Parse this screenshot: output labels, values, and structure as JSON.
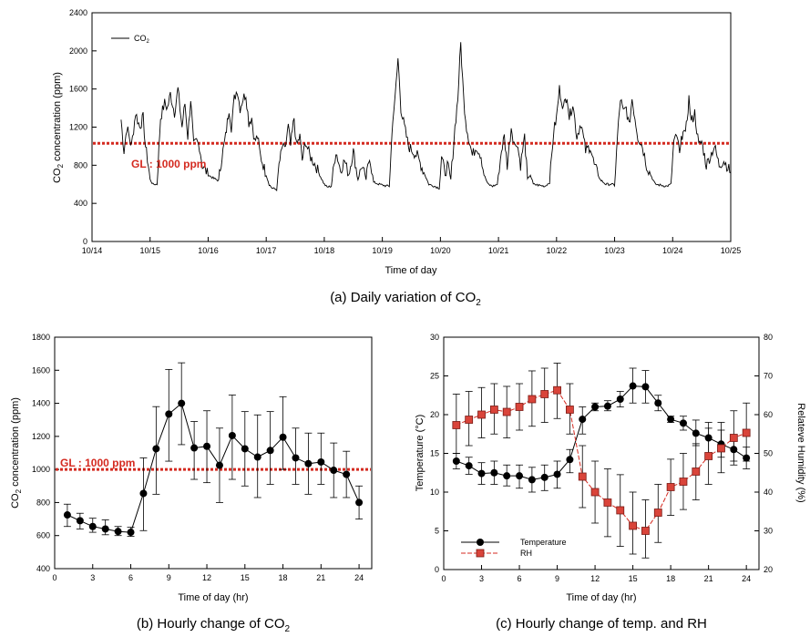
{
  "colors": {
    "guideline": "#d42a20",
    "rh_line": "#d42a20",
    "rh_marker": "#d9443a",
    "line": "#000000"
  },
  "chart_data": [
    {
      "type": "line",
      "id": "a",
      "caption": "(a) Daily variation of CO",
      "caption_sub": "2",
      "xlabel": "Time of day",
      "ylabel": "CO",
      "ylabel_sub": "2",
      "ylabel_rest": " concentration (ppm)",
      "xlim": [
        0,
        11
      ],
      "ylim": [
        0,
        2400
      ],
      "yticks": [
        0,
        400,
        800,
        1200,
        1600,
        2000,
        2400
      ],
      "xtick_labels": [
        "10/14",
        "10/15",
        "10/16",
        "10/17",
        "10/18",
        "10/19",
        "10/20",
        "10/21",
        "10/22",
        "10/23",
        "10/24",
        "10/25"
      ],
      "legend_label": "CO",
      "legend_sub": "2",
      "guideline": {
        "value": 1030,
        "label": "GL : 1000 ppm"
      },
      "series_anchors": [
        [
          0.5,
          1280
        ],
        [
          0.55,
          950
        ],
        [
          0.6,
          1200
        ],
        [
          0.68,
          1000
        ],
        [
          0.75,
          1350
        ],
        [
          0.82,
          1200
        ],
        [
          0.88,
          1300
        ],
        [
          0.92,
          1000
        ],
        [
          0.97,
          800
        ],
        [
          1.0,
          650
        ],
        [
          1.05,
          600
        ],
        [
          1.12,
          600
        ],
        [
          1.18,
          1300
        ],
        [
          1.25,
          1450
        ],
        [
          1.3,
          1400
        ],
        [
          1.35,
          1550
        ],
        [
          1.42,
          1350
        ],
        [
          1.48,
          1600
        ],
        [
          1.55,
          1200
        ],
        [
          1.6,
          1450
        ],
        [
          1.65,
          1100
        ],
        [
          1.7,
          1500
        ],
        [
          1.75,
          1000
        ],
        [
          1.8,
          1050
        ],
        [
          1.85,
          1000
        ],
        [
          1.9,
          800
        ],
        [
          1.95,
          750
        ],
        [
          2.0,
          700
        ],
        [
          2.1,
          660
        ],
        [
          2.18,
          640
        ],
        [
          2.24,
          900
        ],
        [
          2.3,
          1100
        ],
        [
          2.36,
          1400
        ],
        [
          2.4,
          1200
        ],
        [
          2.45,
          1500
        ],
        [
          2.5,
          1600
        ],
        [
          2.55,
          1400
        ],
        [
          2.6,
          1500
        ],
        [
          2.65,
          1550
        ],
        [
          2.7,
          1250
        ],
        [
          2.75,
          1300
        ],
        [
          2.8,
          1050
        ],
        [
          2.85,
          1100
        ],
        [
          2.9,
          900
        ],
        [
          2.95,
          800
        ],
        [
          3.0,
          700
        ],
        [
          3.05,
          600
        ],
        [
          3.1,
          560
        ],
        [
          3.18,
          545
        ],
        [
          3.22,
          800
        ],
        [
          3.28,
          1000
        ],
        [
          3.32,
          950
        ],
        [
          3.38,
          1200
        ],
        [
          3.42,
          1000
        ],
        [
          3.48,
          1300
        ],
        [
          3.52,
          1000
        ],
        [
          3.58,
          1100
        ],
        [
          3.62,
          850
        ],
        [
          3.68,
          1050
        ],
        [
          3.75,
          900
        ],
        [
          3.85,
          800
        ],
        [
          3.92,
          700
        ],
        [
          4.0,
          600
        ],
        [
          4.05,
          570
        ],
        [
          4.12,
          580
        ],
        [
          4.2,
          950
        ],
        [
          4.28,
          750
        ],
        [
          4.35,
          850
        ],
        [
          4.42,
          700
        ],
        [
          4.5,
          950
        ],
        [
          4.58,
          650
        ],
        [
          4.65,
          800
        ],
        [
          4.72,
          650
        ],
        [
          4.78,
          900
        ],
        [
          4.85,
          620
        ],
        [
          4.95,
          600
        ],
        [
          5.05,
          585
        ],
        [
          5.12,
          580
        ],
        [
          5.18,
          1300
        ],
        [
          5.22,
          1500
        ],
        [
          5.27,
          1920
        ],
        [
          5.32,
          1400
        ],
        [
          5.38,
          1200
        ],
        [
          5.45,
          1000
        ],
        [
          5.52,
          950
        ],
        [
          5.6,
          900
        ],
        [
          5.7,
          750
        ],
        [
          5.8,
          600
        ],
        [
          5.9,
          580
        ],
        [
          5.98,
          560
        ],
        [
          6.02,
          900
        ],
        [
          6.08,
          700
        ],
        [
          6.12,
          800
        ],
        [
          6.18,
          650
        ],
        [
          6.25,
          1200
        ],
        [
          6.3,
          1500
        ],
        [
          6.35,
          2080
        ],
        [
          6.4,
          1500
        ],
        [
          6.45,
          1200
        ],
        [
          6.5,
          1050
        ],
        [
          6.55,
          900
        ],
        [
          6.62,
          1000
        ],
        [
          6.7,
          900
        ],
        [
          6.75,
          700
        ],
        [
          6.82,
          600
        ],
        [
          6.9,
          580
        ],
        [
          6.98,
          600
        ],
        [
          7.05,
          950
        ],
        [
          7.1,
          1100
        ],
        [
          7.15,
          800
        ],
        [
          7.22,
          1200
        ],
        [
          7.28,
          1000
        ],
        [
          7.32,
          1050
        ],
        [
          7.38,
          800
        ],
        [
          7.45,
          1100
        ],
        [
          7.5,
          650
        ],
        [
          7.55,
          700
        ],
        [
          7.6,
          600
        ],
        [
          7.7,
          590
        ],
        [
          7.8,
          580
        ],
        [
          7.88,
          620
        ],
        [
          7.95,
          1150
        ],
        [
          8.0,
          1300
        ],
        [
          8.05,
          1600
        ],
        [
          8.12,
          1400
        ],
        [
          8.18,
          1550
        ],
        [
          8.22,
          1300
        ],
        [
          8.28,
          1450
        ],
        [
          8.35,
          1100
        ],
        [
          8.42,
          1250
        ],
        [
          8.5,
          950
        ],
        [
          8.58,
          1000
        ],
        [
          8.65,
          800
        ],
        [
          8.75,
          650
        ],
        [
          8.85,
          600
        ],
        [
          8.95,
          600
        ],
        [
          9.0,
          590
        ],
        [
          9.05,
          1100
        ],
        [
          9.1,
          1500
        ],
        [
          9.15,
          1350
        ],
        [
          9.2,
          1400
        ],
        [
          9.25,
          1200
        ],
        [
          9.3,
          1500
        ],
        [
          9.35,
          1300
        ],
        [
          9.4,
          1100
        ],
        [
          9.48,
          1000
        ],
        [
          9.55,
          800
        ],
        [
          9.62,
          700
        ],
        [
          9.7,
          600
        ],
        [
          9.8,
          590
        ],
        [
          9.9,
          580
        ],
        [
          9.97,
          600
        ],
        [
          10.02,
          1050
        ],
        [
          10.08,
          1100
        ],
        [
          10.12,
          900
        ],
        [
          10.18,
          1200
        ],
        [
          10.22,
          1100
        ],
        [
          10.28,
          1500
        ],
        [
          10.32,
          1250
        ],
        [
          10.38,
          1350
        ],
        [
          10.45,
          1000
        ],
        [
          10.5,
          1050
        ],
        [
          10.58,
          800
        ],
        [
          10.65,
          900
        ],
        [
          10.72,
          1000
        ],
        [
          10.8,
          800
        ],
        [
          10.88,
          850
        ],
        [
          10.95,
          780
        ],
        [
          11.0,
          720
        ]
      ]
    },
    {
      "type": "line",
      "id": "b",
      "caption": "(b) Hourly change of CO",
      "caption_sub": "2",
      "xlabel": "Time of day (hr)",
      "ylabel": "CO",
      "ylabel_sub": "2",
      "ylabel_rest": " concentration (ppm)",
      "xlim": [
        0,
        25
      ],
      "ylim": [
        400,
        1800
      ],
      "xticks": [
        0,
        3,
        6,
        9,
        12,
        15,
        18,
        21,
        24
      ],
      "yticks": [
        400,
        600,
        800,
        1000,
        1200,
        1400,
        1600,
        1800
      ],
      "guideline": {
        "value": 1000,
        "label": "GL : 1000 ppm"
      },
      "series": [
        {
          "name": "CO2",
          "x": [
            1,
            2,
            3,
            4,
            5,
            6,
            7,
            8,
            9,
            10,
            11,
            12,
            13,
            14,
            15,
            16,
            17,
            18,
            19,
            20,
            21,
            22,
            23,
            24
          ],
          "values": [
            725,
            690,
            655,
            640,
            625,
            620,
            855,
            1125,
            1335,
            1400,
            1130,
            1140,
            1025,
            1205,
            1125,
            1075,
            1115,
            1195,
            1070,
            1035,
            1045,
            995,
            970,
            800
          ],
          "err_low": [
            655,
            640,
            620,
            605,
            600,
            595,
            630,
            850,
            1050,
            1150,
            940,
            920,
            800,
            940,
            900,
            830,
            910,
            1000,
            910,
            850,
            910,
            830,
            830,
            700
          ],
          "err_high": [
            790,
            735,
            705,
            695,
            655,
            650,
            1070,
            1380,
            1605,
            1645,
            1290,
            1355,
            1250,
            1450,
            1350,
            1330,
            1350,
            1440,
            1250,
            1220,
            1220,
            1160,
            1110,
            900
          ]
        }
      ]
    },
    {
      "type": "line",
      "id": "c",
      "caption": "(c) Hourly change of temp. and RH",
      "xlabel": "Time of day (hr)",
      "ylabel": "Temperature (°C)",
      "y2label": "Relateve Humidity (%)",
      "xlim": [
        0,
        25
      ],
      "ylim": [
        0,
        30
      ],
      "y2lim": [
        20,
        80
      ],
      "xticks": [
        0,
        3,
        6,
        9,
        12,
        15,
        18,
        21,
        24
      ],
      "yticks": [
        0,
        5,
        10,
        15,
        20,
        25,
        30
      ],
      "y2ticks": [
        20,
        30,
        40,
        50,
        60,
        70,
        80
      ],
      "series": [
        {
          "name": "Temperature",
          "axis": "left",
          "x": [
            1,
            2,
            3,
            4,
            5,
            6,
            7,
            8,
            9,
            10,
            11,
            12,
            13,
            14,
            15,
            16,
            17,
            18,
            19,
            20,
            21,
            22,
            23,
            24
          ],
          "values": [
            14.0,
            13.4,
            12.4,
            12.5,
            12.1,
            12.1,
            11.6,
            11.9,
            12.3,
            14.2,
            19.4,
            21.0,
            21.1,
            22.0,
            23.7,
            23.6,
            21.5,
            19.4,
            18.9,
            17.6,
            17.0,
            16.2,
            15.5,
            14.4
          ],
          "err_low": [
            13.0,
            12.3,
            11.0,
            11.0,
            10.8,
            10.5,
            10.0,
            10.2,
            10.5,
            12.5,
            17.5,
            20.5,
            20.5,
            21.0,
            21.5,
            21.5,
            20.5,
            19.0,
            18.0,
            16.0,
            15.0,
            14.5,
            14.0,
            13.0
          ],
          "err_high": [
            15.0,
            14.5,
            13.8,
            14.0,
            13.5,
            13.5,
            13.2,
            13.5,
            14.0,
            15.5,
            21.0,
            21.5,
            21.8,
            23.0,
            26.0,
            25.7,
            22.5,
            19.8,
            19.8,
            19.3,
            19.0,
            18.0,
            17.0,
            15.8
          ]
        },
        {
          "name": "RH",
          "axis": "right",
          "x": [
            1,
            2,
            3,
            4,
            5,
            6,
            7,
            8,
            9,
            10,
            11,
            12,
            13,
            14,
            15,
            16,
            17,
            18,
            19,
            20,
            21,
            22,
            23,
            24
          ],
          "values": [
            57.3,
            58.7,
            60.0,
            61.3,
            60.7,
            62.0,
            64.0,
            65.3,
            66.3,
            61.3,
            44.0,
            40.0,
            37.3,
            35.3,
            31.3,
            30.0,
            34.7,
            41.3,
            42.7,
            45.3,
            49.3,
            51.3,
            54.0,
            55.3
          ],
          "err_low": [
            50.0,
            52.0,
            54.0,
            55.0,
            54.0,
            56.0,
            57.0,
            58.0,
            59.0,
            55.0,
            36.0,
            32.0,
            28.5,
            26.0,
            24.0,
            23.0,
            27.0,
            34.0,
            35.5,
            38.0,
            42.0,
            45.0,
            47.0,
            48.0
          ],
          "err_high": [
            65.3,
            66.0,
            67.0,
            68.0,
            67.3,
            68.0,
            71.3,
            72.0,
            73.3,
            68.0,
            52.0,
            48.0,
            46.0,
            44.5,
            40.0,
            38.0,
            42.0,
            48.5,
            50.0,
            52.5,
            56.5,
            58.0,
            61.0,
            63.0
          ]
        }
      ],
      "legend": [
        "Temperature",
        "RH"
      ]
    }
  ]
}
